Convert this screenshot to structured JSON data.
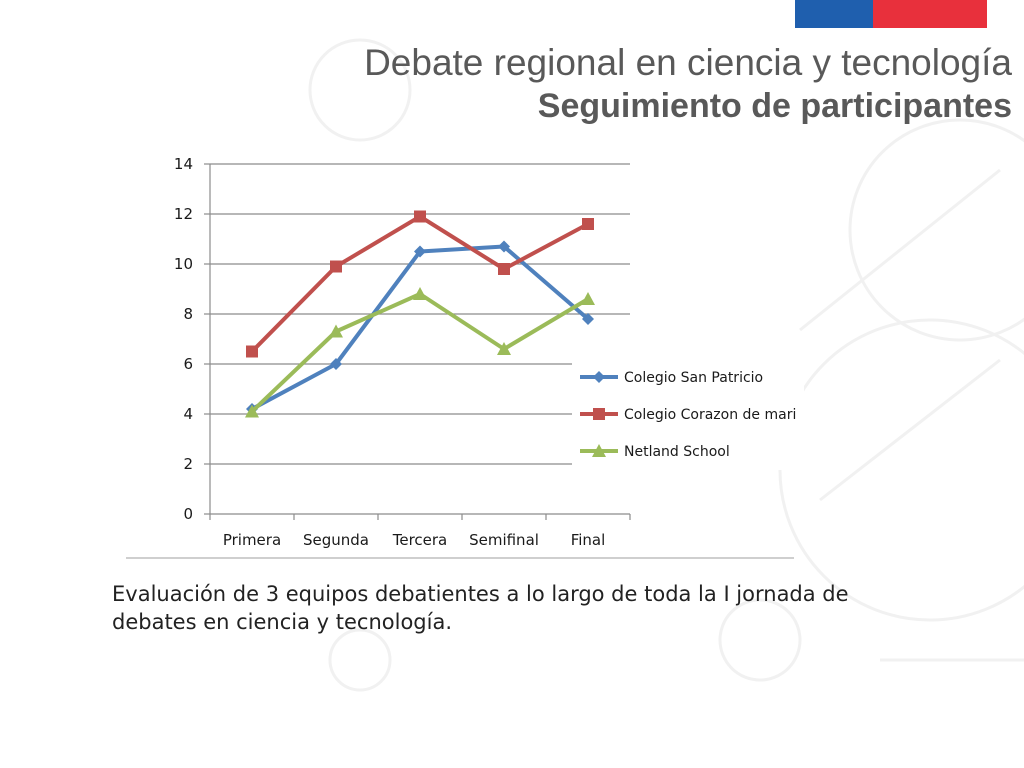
{
  "header": {
    "title": "Debate regional en ciencia y tecnología",
    "subtitle": "Seguimiento de participantes",
    "flag_colors": [
      "#1F5FAE",
      "#E8303C"
    ]
  },
  "caption": "Evaluación de 3 equipos debatientes a lo largo de toda la I jornada de debates en ciencia y tecnología.",
  "chart_data": {
    "type": "line",
    "title": "",
    "xlabel": "",
    "ylabel": "",
    "categories": [
      "Primera",
      "Segunda",
      "Tercera",
      "Semifinal",
      "Final"
    ],
    "ylim": [
      0,
      14
    ],
    "yticks": [
      0,
      2,
      4,
      6,
      8,
      10,
      12,
      14
    ],
    "grid": "horizontal",
    "legend_position": "right",
    "series": [
      {
        "name": "Colegio San Patricio",
        "color": "#4F81BD",
        "marker": "diamond",
        "values": [
          4.2,
          6.0,
          10.5,
          10.7,
          7.8
        ]
      },
      {
        "name": "Colegio Corazon de mari",
        "color": "#C0504D",
        "marker": "square",
        "values": [
          6.5,
          9.9,
          11.9,
          9.8,
          11.6
        ]
      },
      {
        "name": "Netland School",
        "color": "#9BBB59",
        "marker": "triangle",
        "values": [
          4.1,
          7.3,
          8.8,
          6.6,
          8.6
        ]
      }
    ]
  }
}
